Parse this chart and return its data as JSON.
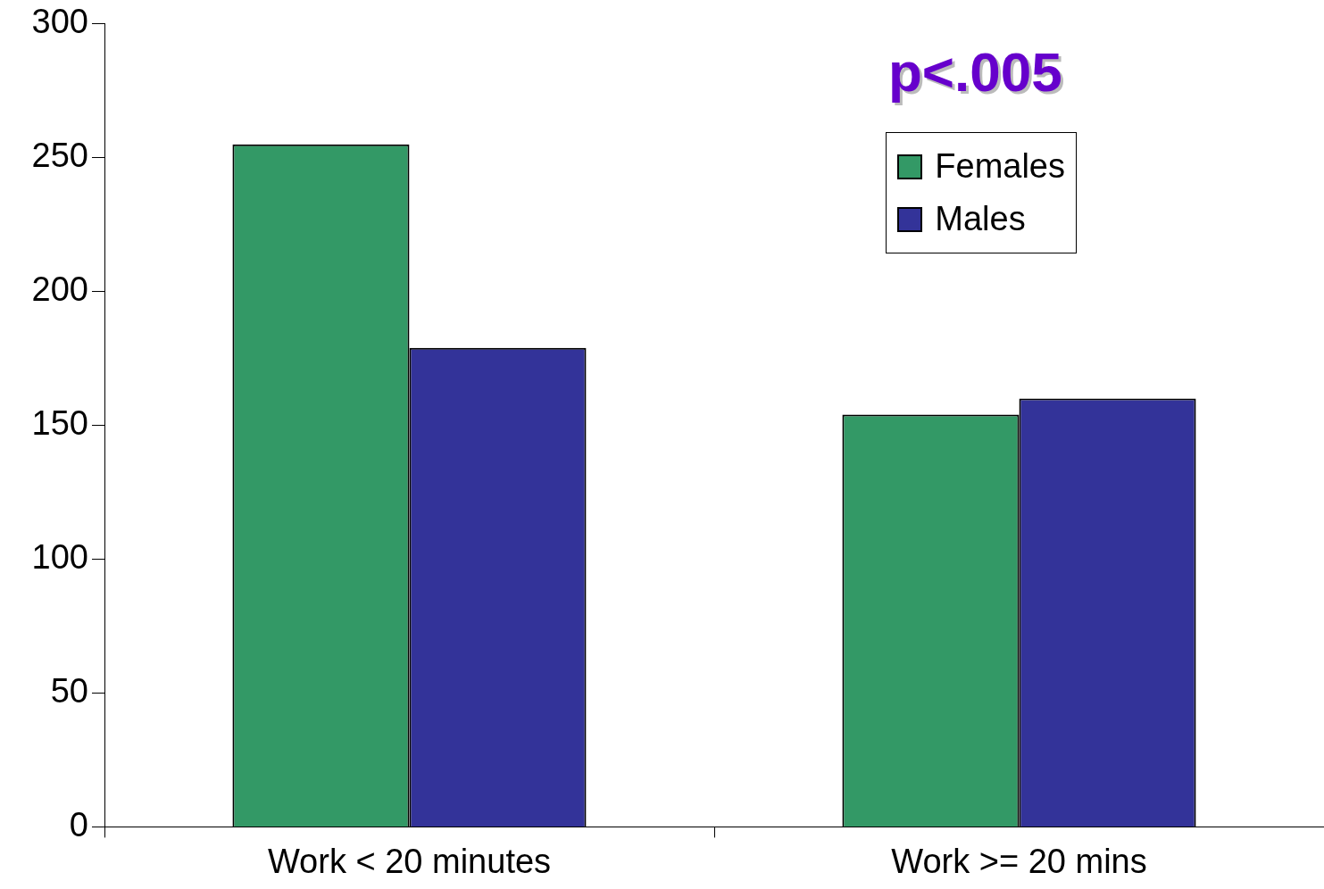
{
  "chart_data": {
    "type": "bar",
    "categories": [
      "Work < 20 minutes",
      "Work >= 20 mins"
    ],
    "series": [
      {
        "name": "Females",
        "color": "#339966",
        "values": [
          255,
          154
        ]
      },
      {
        "name": "Males",
        "color": "#333399",
        "values": [
          179,
          160
        ]
      }
    ],
    "ylim": [
      0,
      300
    ],
    "yticks": [
      0,
      50,
      100,
      150,
      200,
      250,
      300
    ],
    "grid": false,
    "legend": "top right",
    "annotations": [
      "p<.005"
    ]
  }
}
